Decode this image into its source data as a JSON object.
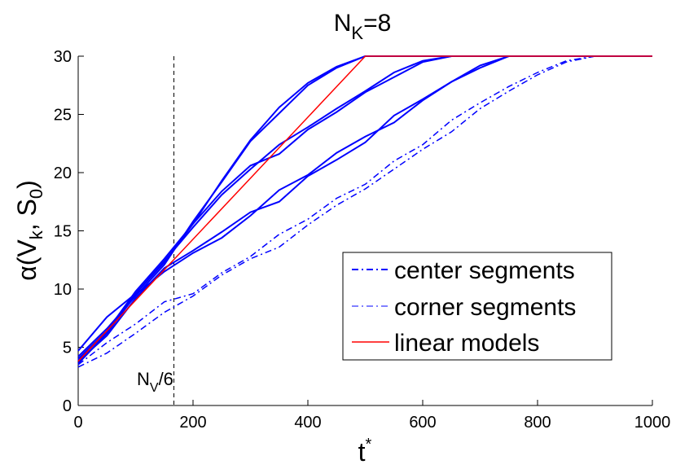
{
  "chart_data": {
    "type": "line",
    "title": "N_K=8",
    "title_parts": {
      "main": "N",
      "sub": "K",
      "rest": "=8"
    },
    "xlabel": "t*",
    "xlabel_parts": {
      "main": "t",
      "sup": "*"
    },
    "ylabel": "α(V_k, S_0)",
    "ylabel_parts": {
      "a": "α(V",
      "sub1": "k",
      "b": ", S",
      "sub2": "0",
      "c": ")"
    },
    "xlim": [
      0,
      1000
    ],
    "ylim": [
      0,
      30
    ],
    "xticks": [
      0,
      200,
      400,
      600,
      800,
      1000
    ],
    "yticks": [
      0,
      5,
      10,
      15,
      20,
      25,
      30
    ],
    "grid": false,
    "legend_position": "bottom-right",
    "legend": [
      {
        "label": "center segments",
        "style": "dashdot",
        "color": "#0000ff"
      },
      {
        "label": "corner segments",
        "style": "dashdot-thin",
        "color": "#0000ff"
      },
      {
        "label": "linear models",
        "style": "solid",
        "color": "#ff0000"
      }
    ],
    "vline": {
      "x": 166.7,
      "label": "N_V/6",
      "label_parts": {
        "main": "N",
        "sub": "V",
        "rest": "/6"
      }
    },
    "series": [
      {
        "style": "solid",
        "color": "#0000ff",
        "x": [
          0,
          50,
          100,
          150,
          200,
          250,
          300,
          350,
          400,
          450,
          500,
          1000
        ],
        "y": [
          4.7,
          7.6,
          9.6,
          12.3,
          15.6,
          19.3,
          22.8,
          25.6,
          27.7,
          29.1,
          30,
          30
        ]
      },
      {
        "style": "solid",
        "color": "#0000ff",
        "x": [
          0,
          50,
          100,
          150,
          200,
          250,
          300,
          350,
          400,
          450,
          500,
          1000
        ],
        "y": [
          4.2,
          6.6,
          9.4,
          12.1,
          15.8,
          19.2,
          22.7,
          25.1,
          27.5,
          29.0,
          30,
          30
        ]
      },
      {
        "style": "solid",
        "color": "#0000ff",
        "x": [
          0,
          50,
          100,
          150,
          200,
          250,
          300,
          350,
          400,
          450,
          500,
          550,
          600,
          650,
          1000
        ],
        "y": [
          4.0,
          6.4,
          9.8,
          12.6,
          15.6,
          18.4,
          20.6,
          21.6,
          23.7,
          25.2,
          26.9,
          28.2,
          29.5,
          30,
          30
        ]
      },
      {
        "style": "solid",
        "color": "#0000ff",
        "x": [
          0,
          50,
          100,
          150,
          200,
          250,
          300,
          350,
          400,
          450,
          500,
          550,
          600,
          650,
          1000
        ],
        "y": [
          3.9,
          6.3,
          9.6,
          12.4,
          15.3,
          18.1,
          20.3,
          22.4,
          23.9,
          25.5,
          27.0,
          28.6,
          29.6,
          30,
          30
        ]
      },
      {
        "style": "solid",
        "color": "#0000ff",
        "x": [
          0,
          50,
          100,
          150,
          200,
          250,
          300,
          350,
          400,
          450,
          500,
          550,
          600,
          650,
          700,
          750,
          1000
        ],
        "y": [
          3.8,
          6.0,
          9.2,
          11.8,
          13.3,
          14.9,
          16.6,
          17.5,
          19.7,
          21.1,
          22.6,
          24.9,
          26.3,
          27.8,
          29.0,
          30,
          30
        ]
      },
      {
        "style": "solid",
        "color": "#0000ff",
        "x": [
          0,
          50,
          100,
          150,
          200,
          250,
          300,
          350,
          400,
          450,
          500,
          550,
          600,
          650,
          700,
          750,
          1000
        ],
        "y": [
          3.6,
          6.2,
          9.5,
          11.5,
          13.1,
          14.4,
          16.3,
          18.5,
          19.8,
          21.7,
          23.1,
          24.3,
          26.2,
          27.8,
          29.2,
          30,
          30
        ]
      },
      {
        "style": "dashdot",
        "color": "#0000ff",
        "x": [
          0,
          50,
          100,
          150,
          200,
          250,
          300,
          350,
          400,
          450,
          500,
          550,
          600,
          650,
          700,
          750,
          800,
          850,
          900,
          1000
        ],
        "y": [
          3.5,
          5.4,
          7.0,
          8.9,
          9.6,
          11.4,
          12.8,
          14.7,
          16.0,
          17.8,
          19.0,
          21.0,
          22.4,
          24.5,
          26.0,
          27.4,
          28.6,
          29.6,
          30,
          30
        ]
      },
      {
        "style": "dashdot",
        "color": "#0000ff",
        "x": [
          0,
          50,
          100,
          150,
          200,
          250,
          300,
          350,
          400,
          450,
          500,
          550,
          600,
          650,
          700,
          750,
          800,
          850,
          900,
          1000
        ],
        "y": [
          3.3,
          4.5,
          6.2,
          8.0,
          9.4,
          11.2,
          12.6,
          13.6,
          15.5,
          17.2,
          18.6,
          20.3,
          22.0,
          23.5,
          25.5,
          27.0,
          28.4,
          29.5,
          30,
          30
        ]
      }
    ],
    "linear_model": {
      "x": [
        0,
        500,
        1000
      ],
      "y": [
        3.8,
        30,
        30
      ]
    }
  }
}
